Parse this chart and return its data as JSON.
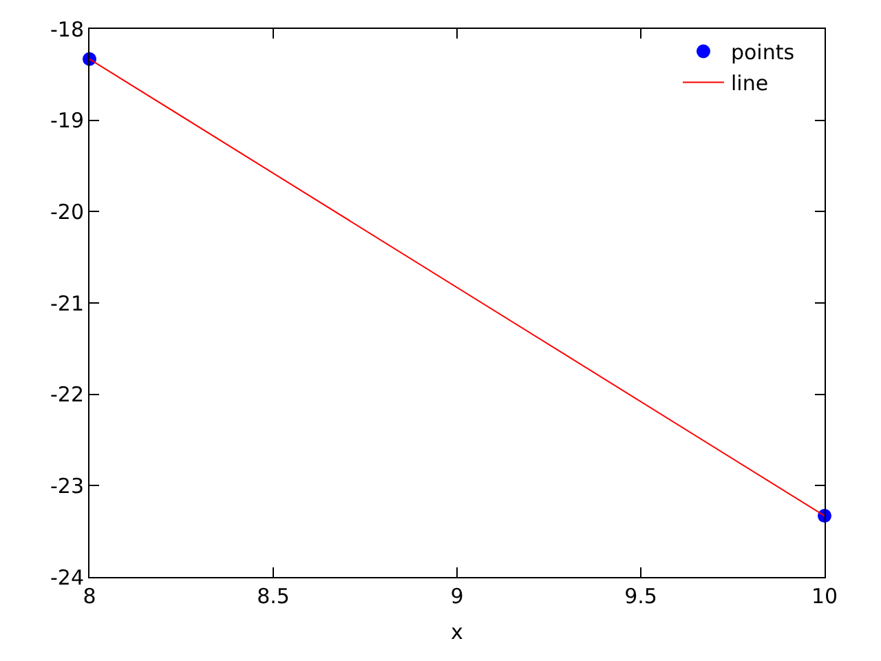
{
  "chart_data": {
    "type": "line",
    "xlabel": "x",
    "x": [
      8,
      10
    ],
    "series": [
      {
        "name": "points",
        "type": "scatter",
        "color": "#0000ff",
        "marker": "circle",
        "values": [
          -18.33,
          -23.33
        ]
      },
      {
        "name": "line",
        "color": "#ff0000",
        "line_style": "solid",
        "values": [
          -18.33,
          -23.33
        ]
      }
    ],
    "xlim": [
      8,
      10
    ],
    "xticks": [
      8,
      8.5,
      9,
      9.5,
      10
    ],
    "ylim": [
      -24,
      -18
    ],
    "yticks": [
      -24,
      -23,
      -22,
      -21,
      -20,
      -19,
      -18
    ],
    "legend": "top right"
  }
}
